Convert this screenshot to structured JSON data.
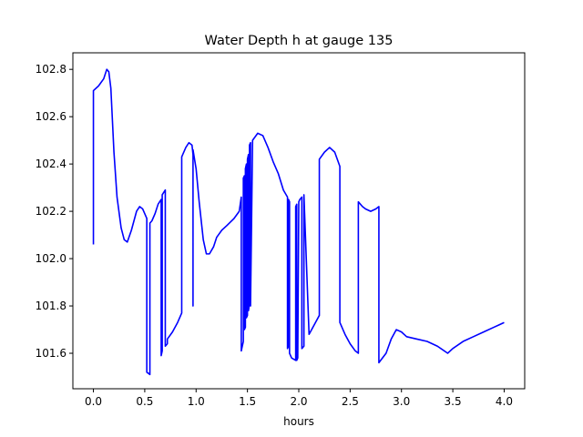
{
  "chart_data": {
    "type": "line",
    "title": "Water Depth h at gauge 135",
    "xlabel": "hours",
    "ylabel": "",
    "xlim": [
      -0.2,
      4.2
    ],
    "ylim": [
      101.45,
      102.87
    ],
    "xticks": [
      0.0,
      0.5,
      1.0,
      1.5,
      2.0,
      2.5,
      3.0,
      3.5,
      4.0
    ],
    "xtick_labels": [
      "0.0",
      "0.5",
      "1.0",
      "1.5",
      "2.0",
      "2.5",
      "3.0",
      "3.5",
      "4.0"
    ],
    "yticks": [
      101.6,
      101.8,
      102.0,
      102.2,
      102.4,
      102.6,
      102.8
    ],
    "ytick_labels": [
      "101.6",
      "101.8",
      "102.0",
      "102.2",
      "102.4",
      "102.6",
      "102.8"
    ],
    "grid": false,
    "series": [
      {
        "color": "#0000ff",
        "x": [
          0.0,
          0.0,
          0.05,
          0.1,
          0.13,
          0.15,
          0.17,
          0.2,
          0.23,
          0.27,
          0.3,
          0.33,
          0.37,
          0.42,
          0.45,
          0.48,
          0.52,
          0.52,
          0.55,
          0.55,
          0.57,
          0.6,
          0.63,
          0.66,
          0.66,
          0.67,
          0.67,
          0.7,
          0.7,
          0.72,
          0.72,
          0.77,
          0.82,
          0.86,
          0.86,
          0.9,
          0.93,
          0.96,
          0.97,
          0.97,
          0.97,
          1.0,
          1.03,
          1.07,
          1.1,
          1.13,
          1.17,
          1.2,
          1.25,
          1.3,
          1.37,
          1.42,
          1.44,
          1.44,
          1.46,
          1.46,
          1.47,
          1.47,
          1.48,
          1.48,
          1.49,
          1.49,
          1.5,
          1.5,
          1.51,
          1.51,
          1.52,
          1.52,
          1.53,
          1.53,
          1.55,
          1.6,
          1.65,
          1.7,
          1.75,
          1.8,
          1.85,
          1.89,
          1.89,
          1.9,
          1.9,
          1.91,
          1.91,
          1.93,
          1.97,
          1.97,
          1.98,
          1.98,
          1.99,
          2.0,
          2.01,
          2.03,
          2.03,
          2.05,
          2.05,
          2.1,
          2.15,
          2.2,
          2.2,
          2.25,
          2.3,
          2.35,
          2.4,
          2.4,
          2.45,
          2.5,
          2.55,
          2.58,
          2.58,
          2.62,
          2.65,
          2.7,
          2.75,
          2.78,
          2.78,
          2.85,
          2.9,
          2.95,
          3.0,
          3.05,
          3.15,
          3.25,
          3.35,
          3.45,
          3.5,
          3.6,
          3.7,
          3.8,
          3.9,
          3.95,
          4.0
        ],
        "y": [
          102.06,
          102.71,
          102.73,
          102.76,
          102.8,
          102.79,
          102.72,
          102.45,
          102.26,
          102.13,
          102.08,
          102.07,
          102.12,
          102.2,
          102.22,
          102.21,
          102.17,
          101.52,
          101.51,
          102.15,
          102.16,
          102.19,
          102.23,
          102.25,
          101.59,
          101.61,
          102.27,
          102.29,
          101.63,
          101.64,
          101.66,
          101.69,
          101.73,
          101.77,
          102.43,
          102.47,
          102.49,
          102.48,
          102.44,
          101.8,
          102.46,
          102.38,
          102.24,
          102.08,
          102.02,
          102.02,
          102.05,
          102.09,
          102.12,
          102.14,
          102.17,
          102.2,
          102.26,
          101.61,
          101.65,
          102.34,
          102.35,
          101.7,
          101.71,
          102.38,
          102.4,
          101.75,
          101.76,
          102.42,
          102.44,
          101.78,
          101.81,
          102.48,
          102.49,
          101.8,
          102.5,
          102.53,
          102.52,
          102.47,
          102.41,
          102.36,
          102.29,
          102.26,
          101.62,
          101.63,
          102.25,
          102.24,
          101.6,
          101.58,
          101.57,
          102.22,
          102.23,
          101.57,
          101.58,
          102.24,
          102.25,
          102.26,
          101.62,
          101.63,
          102.27,
          101.68,
          101.72,
          101.76,
          102.42,
          102.45,
          102.47,
          102.45,
          102.39,
          101.73,
          101.68,
          101.64,
          101.61,
          101.6,
          102.24,
          102.22,
          102.21,
          102.2,
          102.21,
          102.22,
          101.56,
          101.6,
          101.66,
          101.7,
          101.69,
          101.67,
          101.66,
          101.65,
          101.63,
          101.6,
          101.62,
          101.65,
          101.67,
          101.69,
          101.71,
          101.72,
          101.73
        ]
      }
    ]
  }
}
